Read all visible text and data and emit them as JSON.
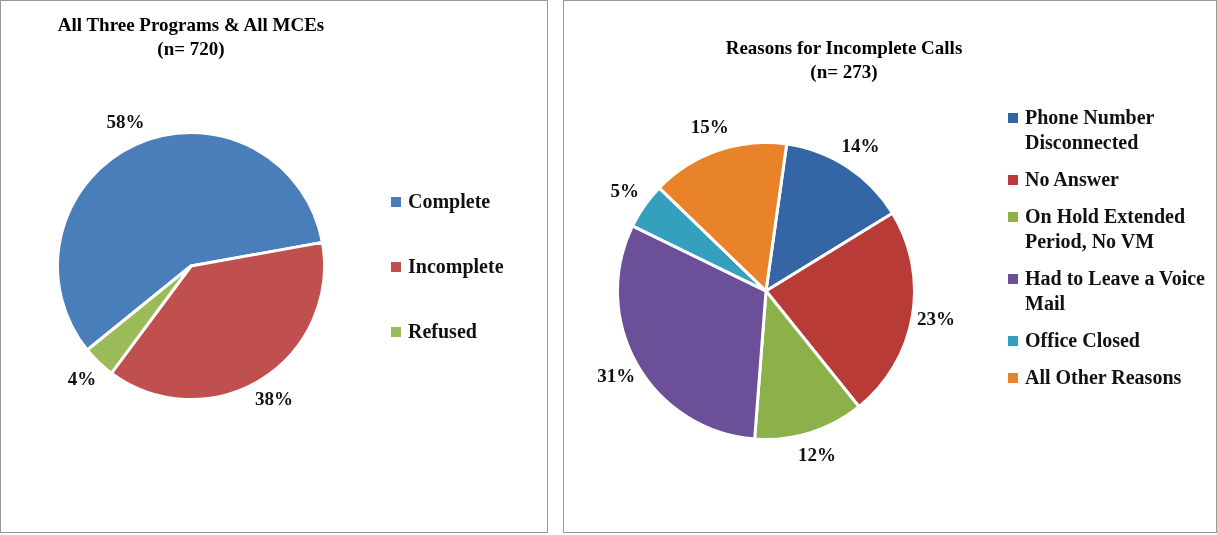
{
  "chart_data": [
    {
      "type": "pie",
      "title": "All Three Programs & All MCEs",
      "subtitle": "(n= 720)",
      "categories": [
        "Complete",
        "Incomplete",
        "Refused"
      ],
      "values": [
        58,
        38,
        4
      ],
      "value_labels": [
        "58%",
        "38%",
        "4%"
      ],
      "colors": [
        "#4a7ebb",
        "#c0504d",
        "#9bbb59"
      ],
      "legend": "right"
    },
    {
      "type": "pie",
      "title": "Reasons for Incomplete  Calls",
      "subtitle": "(n= 273)",
      "categories": [
        "Phone Number Disconnected",
        "No Answer",
        "On Hold Extended Period, No VM",
        "Had to Leave a Voice Mail",
        "Office Closed",
        "All Other Reasons"
      ],
      "values": [
        14,
        23,
        12,
        31,
        5,
        15
      ],
      "value_labels": [
        "14%",
        "23%",
        "12%",
        "31%",
        "5%",
        "15%"
      ],
      "colors": [
        "#3465a4",
        "#b83b38",
        "#8cb04a",
        "#6b4f98",
        "#35a0bd",
        "#e8832a"
      ],
      "legend": "right"
    }
  ]
}
